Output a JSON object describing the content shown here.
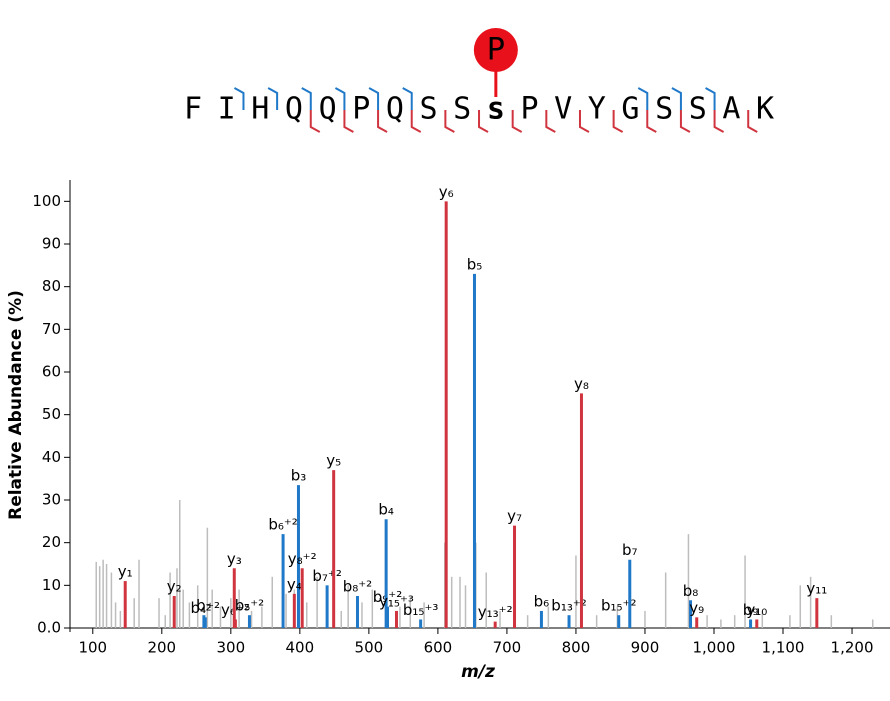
{
  "peptide": {
    "residues": [
      "F",
      "I",
      "H",
      "Q",
      "Q",
      "P",
      "Q",
      "S",
      "S",
      "s",
      "P",
      "V",
      "Y",
      "G",
      "S",
      "S",
      "A",
      "K"
    ],
    "modification": "P"
  },
  "chart_data": {
    "type": "spectrum",
    "xlabel": "m/z",
    "ylabel": "Relative Abundance (%)",
    "xlim": [
      67,
      1255
    ],
    "ylim": [
      0,
      105
    ],
    "xticks": [
      100,
      200,
      300,
      400,
      500,
      600,
      700,
      800,
      900,
      {
        "value": 1000,
        "label": "1,000"
      },
      {
        "value": 1100,
        "label": "1,100"
      },
      {
        "value": 1200,
        "label": "1,200"
      }
    ],
    "yticks": [
      {
        "value": 0,
        "label": "0.0"
      },
      10,
      20,
      30,
      40,
      50,
      60,
      70,
      80,
      90,
      100
    ],
    "series": [
      {
        "color": "#bdbdbd",
        "x": [
          105,
          110,
          115,
          120,
          127,
          133,
          140,
          160,
          167,
          196,
          205,
          212,
          222,
          226,
          231,
          240,
          252,
          266,
          273,
          285,
          300,
          312,
          330,
          345,
          360,
          380,
          392,
          410,
          425,
          460,
          470,
          490,
          505,
          545,
          560,
          580,
          610,
          620,
          632,
          640,
          655,
          670,
          690,
          730,
          760,
          800,
          830,
          860,
          900,
          930,
          963,
          990,
          1010,
          1030,
          1045,
          1070,
          1110,
          1125,
          1140,
          1170,
          1230
        ],
        "values": [
          15.5,
          14.5,
          16,
          15,
          13,
          6,
          4,
          7,
          16,
          7,
          3,
          13,
          14,
          30,
          9,
          6,
          10,
          23.5,
          9,
          5,
          7,
          9,
          4,
          5,
          12,
          8,
          9,
          6,
          12,
          4,
          10,
          6,
          9,
          5,
          7,
          6,
          20,
          12,
          12,
          10,
          20,
          13,
          4,
          3,
          5,
          17,
          3,
          5,
          4,
          13,
          22,
          3,
          2,
          3,
          17,
          4,
          3,
          10,
          12,
          3,
          2
        ]
      },
      {
        "color": "#1f78c8",
        "x": [
          261,
          263,
          327,
          375.7,
          398,
          439.5,
          483.5,
          527,
          525,
          575,
          653,
          750,
          790,
          862,
          878,
          966,
          1053
        ],
        "values": [
          3,
          2.5,
          3,
          22,
          33.5,
          10,
          7.5,
          5,
          25.5,
          2,
          83,
          4,
          3,
          3,
          16,
          6.5,
          2
        ],
        "labels": [
          "b₂",
          "b₄⁺²",
          "b₅⁺²",
          "b₆⁺²",
          "b₃",
          "b₇⁺²",
          "b₈⁺²",
          "b₉⁺²",
          "b₄",
          "b₁₅⁺³",
          "b₅",
          "b₆",
          "b₁₃⁺²",
          "b₁₅⁺²",
          "b₇",
          "b₈",
          "b₉"
        ]
      },
      {
        "color": "#d0343f",
        "x": [
          147,
          218,
          306.6,
          305,
          392,
          403.4,
          449,
          540,
          612,
          683,
          711,
          808,
          975,
          1062,
          1149
        ],
        "values": [
          11,
          7.5,
          2,
          14,
          8,
          14,
          37,
          4,
          100,
          1.5,
          24,
          55,
          2.5,
          2,
          7
        ],
        "labels": [
          "y₁",
          "y₂",
          "y₆⁺²",
          "y₃",
          "y₄",
          "y₈⁺²",
          "y₅",
          "y₁₅⁺³",
          "y₆",
          "y₁₃⁺²",
          "y₇",
          "y₈",
          "y₉",
          "y₁₀",
          "y₁₁"
        ]
      }
    ]
  }
}
